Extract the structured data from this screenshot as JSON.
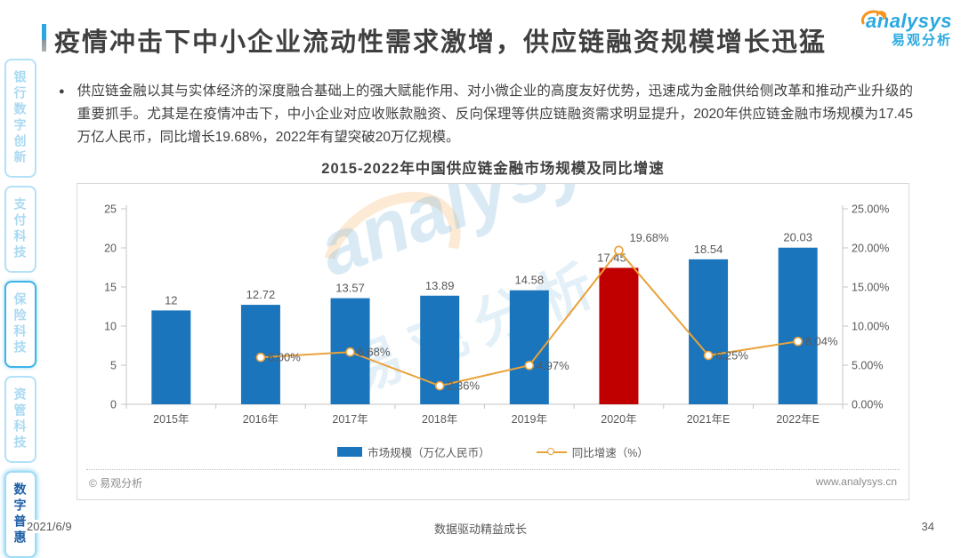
{
  "page": {
    "title": "疫情冲击下中小企业流动性需求激增，供应链融资规模增长迅猛",
    "bullet_text": "供应链金融以其与实体经济的深度融合基础上的强大赋能作用、对小微企业的高度友好优势，迅速成为金融供给侧改革和推动产业升级的重要抓手。尤其是在疫情冲击下，中小企业对应收账款融资、反向保理等供应链融资需求明显提升，2020年供应链金融市场规模为17.45万亿人民币，同比增长19.68%，2022年有望突破20万亿规模。",
    "date": "2021/6/9",
    "motto": "数据驱动精益成长",
    "page_number": "34"
  },
  "logo": {
    "brand": "analysys",
    "brand_cn": "易观分析"
  },
  "sidebar": {
    "items": [
      {
        "label": "银行数字创新",
        "state": "normal"
      },
      {
        "label": "支付科技",
        "state": "normal"
      },
      {
        "label": "保险科技",
        "state": "outlined"
      },
      {
        "label": "资管科技",
        "state": "normal"
      },
      {
        "label": "数字普惠",
        "state": "active"
      }
    ]
  },
  "chart_footer": {
    "copyright": "© 易观分析",
    "website": "www.analysys.cn"
  },
  "chart_data": {
    "type": "bar",
    "combo": "bar+line",
    "title": "2015-2022年中国供应链金融市场规模及同比增速",
    "categories": [
      "2015年",
      "2016年",
      "2017年",
      "2018年",
      "2019年",
      "2020年",
      "2021年E",
      "2022年E"
    ],
    "series": [
      {
        "name": "市场规模（万亿人民币）",
        "type": "bar",
        "values": [
          12,
          12.72,
          13.57,
          13.89,
          14.58,
          17.45,
          18.54,
          20.03
        ],
        "labels": [
          "12",
          "12.72",
          "13.57",
          "13.89",
          "14.58",
          "17.45",
          "18.54",
          "20.03"
        ],
        "color": "#1B75BC",
        "highlight_index": 5,
        "highlight_color": "#C00000",
        "axis": "left"
      },
      {
        "name": "同比增速（%）",
        "type": "line",
        "values": [
          null,
          6.0,
          6.68,
          2.36,
          4.97,
          19.68,
          6.25,
          8.04
        ],
        "labels": [
          null,
          "6.00%",
          "6.68%",
          "2.36%",
          "4.97%",
          "19.68%",
          "6.25%",
          "8.04%"
        ],
        "color": "#E9A23B",
        "marker": "open-circle",
        "axis": "right"
      }
    ],
    "left_axis": {
      "ticks": [
        0,
        5,
        10,
        15,
        20,
        25
      ],
      "min": 0,
      "max": 25
    },
    "right_axis": {
      "ticks": [
        "0.00%",
        "5.00%",
        "10.00%",
        "15.00%",
        "20.00%",
        "25.00%"
      ],
      "min": 0,
      "max": 25
    },
    "legend_position": "bottom",
    "grid": false,
    "colors": {
      "axis": "#C6C6C6",
      "label_text": "#595959"
    }
  }
}
